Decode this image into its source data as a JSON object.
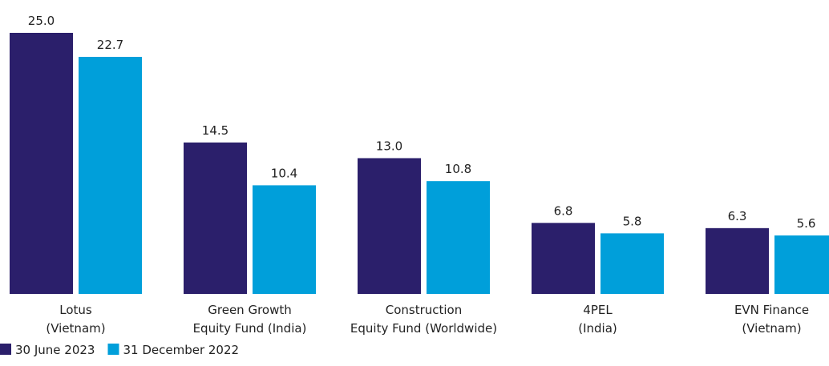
{
  "chart_data": {
    "type": "bar",
    "categories": [
      [
        "Lotus",
        "(Vietnam)"
      ],
      [
        "Green Growth",
        "Equity Fund (India)"
      ],
      [
        "Construction",
        "Equity Fund (Worldwide)"
      ],
      [
        "4PEL",
        "(India)"
      ],
      [
        "EVN Finance",
        "(Vietnam)"
      ]
    ],
    "series": [
      {
        "name": "30 June 2023",
        "color": "#2b1f6b",
        "values": [
          25,
          14.5,
          13,
          6.8,
          6.3
        ],
        "value_labels": [
          "25.0",
          "14.5",
          "13.0",
          "6.8",
          "6.3"
        ]
      },
      {
        "name": "31 December 2022",
        "color": "#009fda",
        "values": [
          22.7,
          10.4,
          10.8,
          5.8,
          5.6
        ],
        "value_labels": [
          "22.7",
          "10.4",
          "10.8",
          "5.8",
          "5.6"
        ]
      }
    ],
    "ylim": [
      0,
      25
    ],
    "legend": "bottom-left"
  }
}
